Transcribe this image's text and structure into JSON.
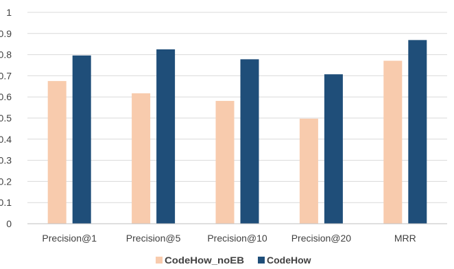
{
  "chart_data": {
    "type": "bar",
    "title": "",
    "xlabel": "",
    "ylabel": "",
    "categories": [
      "Precision@1",
      "Precision@5",
      "Precision@10",
      "Precision@20",
      "MRR"
    ],
    "series": [
      {
        "name": "CodeHow_noEB",
        "values": [
          0.675,
          0.617,
          0.581,
          0.497,
          0.771
        ],
        "color": "#F8CBAD"
      },
      {
        "name": "CodeHow",
        "values": [
          0.796,
          0.825,
          0.778,
          0.707,
          0.869
        ],
        "color": "#1F4E79"
      }
    ],
    "ylim": [
      0,
      1
    ],
    "yticks": [
      "0",
      "0.1",
      "0.2",
      "0.3",
      "0.4",
      "0.5",
      "0.6",
      "0.7",
      "0.8",
      "0.9",
      "1"
    ],
    "grid": true,
    "legend_position": "bottom"
  }
}
